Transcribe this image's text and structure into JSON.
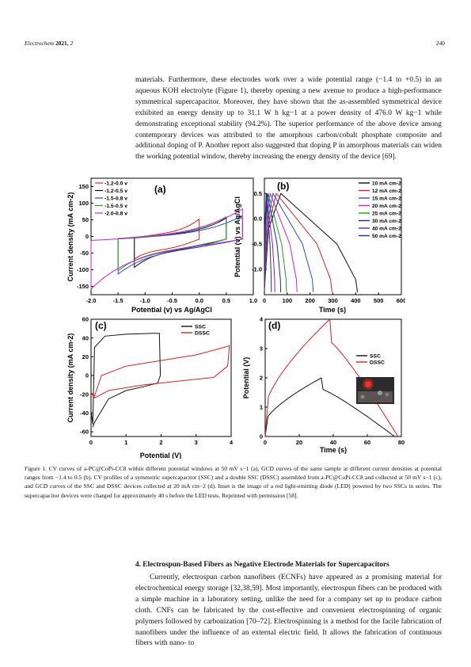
{
  "header": {
    "journal": "Electrochem",
    "year": "2021,",
    "volume": "2",
    "page": "240"
  },
  "para1": {
    "lines": [
      "materials. Furthermore, these electrodes work over a wide potential range (−1.4 to +0.5)",
      "in an aqueous KOH electrolyte (Figure 1), thereby opening a new avenue to produce",
      "a high-performance symmetrical supercapacitor. Moreover, they have shown that the",
      "as-assembled symmetrical device exhibited an energy density up to 31.1 W h kg−1 at a",
      "power density of 476.0 W kg−1 while demonstrating exceptional stability (94.2%). The",
      "superior performance of the above device among contemporary devices was attributed to",
      "the amorphous carbon/cobalt phosphate composite and additional doping of P. Another",
      "report also suggested that doping P in amorphous materials can widen the working",
      "potential window, thereby increasing the energy density of the device [69]."
    ]
  },
  "chart_data": [
    {
      "type": "line",
      "panel": "(a)",
      "xlabel": "Potential (v) vs Ag/AgCl",
      "ylabel": "Current density (mA cm-2)",
      "xlim": [
        -2.0,
        1.0
      ],
      "ylim": [
        -175,
        175
      ],
      "xticks": [
        "-2.0",
        "-1.5",
        "-1.0",
        "-0.5",
        "0.0",
        "0.5",
        "1.0"
      ],
      "yticks": [
        "150",
        "100",
        "50",
        "0",
        "-50",
        "-100",
        "-150"
      ],
      "legend": "top-left",
      "series": [
        {
          "name": "-1.2-0.0 v",
          "color": "#e02020",
          "x_range": [
            -1.2,
            0.0
          ]
        },
        {
          "name": "-1.2-0.5 v",
          "color": "#111111",
          "x_range": [
            -1.2,
            0.5
          ]
        },
        {
          "name": "-1.5-0.8 v",
          "color": "#2a4de0",
          "x_range": [
            -1.5,
            0.8
          ]
        },
        {
          "name": "-1.5-0.5 v",
          "color": "#20a020",
          "x_range": [
            -1.5,
            0.5
          ]
        },
        {
          "name": "-2.0-0.8 v",
          "color": "#d020d0",
          "x_range": [
            -2.0,
            0.8
          ]
        }
      ]
    },
    {
      "type": "line",
      "panel": "(b)",
      "xlabel": "Time (s)",
      "ylabel": "Potential (v) vs Ag/AgCl",
      "xlim": [
        0,
        600
      ],
      "ylim": [
        -1.5,
        0.8
      ],
      "xticks": [
        "0",
        "100",
        "200",
        "300",
        "400",
        "500",
        "600"
      ],
      "yticks": [
        "0.5",
        "0.0",
        "-0.5",
        "-1.0"
      ],
      "legend": "top-right",
      "series": [
        {
          "name": "10 mA cm-2",
          "color": "#111111",
          "discharge_end": 400
        },
        {
          "name": "12 mA cm-2",
          "color": "#e02020",
          "discharge_end": 290
        },
        {
          "name": "15 mA cm-2",
          "color": "#2a4de0",
          "discharge_end": 210
        },
        {
          "name": "20 mA cm-2",
          "color": "#d020d0",
          "discharge_end": 140
        },
        {
          "name": "25 mA cm-2",
          "color": "#20a020",
          "discharge_end": 95
        },
        {
          "name": "30 mA cm-2",
          "color": "#1a2a90",
          "discharge_end": 70
        },
        {
          "name": "40 mA cm-2",
          "color": "#8020c0",
          "discharge_end": 45
        },
        {
          "name": "50 mA cm-2",
          "color": "#203080",
          "discharge_end": 30
        }
      ]
    },
    {
      "type": "line",
      "panel": "(c)",
      "xlabel": "Potential (V)",
      "ylabel": "Current density (mA cm-2)",
      "xlim": [
        0,
        4
      ],
      "ylim": [
        -65,
        60
      ],
      "xticks": [
        "0",
        "1",
        "2",
        "3",
        "4"
      ],
      "yticks": [
        "60",
        "40",
        "20",
        "0",
        "-20",
        "-40",
        "-60"
      ],
      "legend": "top-right",
      "series": [
        {
          "name": "SSC",
          "color": "#111111",
          "x_range": [
            0,
            2.0
          ]
        },
        {
          "name": "DSSC",
          "color": "#e02020",
          "x_range": [
            0,
            4.0
          ]
        }
      ]
    },
    {
      "type": "line",
      "panel": "(d)",
      "xlabel": "Time (s)",
      "ylabel": "Potential (V)",
      "xlim": [
        0,
        80
      ],
      "ylim": [
        0,
        4
      ],
      "xticks": [
        "0",
        "20",
        "40",
        "60",
        "80"
      ],
      "yticks": [
        "0",
        "1",
        "2",
        "3",
        "4"
      ],
      "legend": "top-right",
      "series": [
        {
          "name": "SSC",
          "color": "#111111",
          "x": [
            0,
            33,
            76
          ],
          "y": [
            0,
            2.0,
            0
          ]
        },
        {
          "name": "DSSC",
          "color": "#e02020",
          "x": [
            0,
            38,
            78
          ],
          "y": [
            0,
            4.0,
            0
          ]
        }
      ],
      "inset": "LED photo"
    }
  ],
  "caption": {
    "lines": [
      "Figure 1. CV curves of a-PC@CoPi-CC8 within different potential windows at 50 mV s−1 (a), GCD curves of the same",
      "sample at different current densities at potential ranges from −1.4 to 0.5 (b). CV profiles of a symmetric supercapacitor",
      "(SSC) and a double SSC (DSSC) assembled from a-PC@CoPi-CC8 and collected at 50 mV s−1 (c), and GCD curves of the",
      "SSC and DSSC devices collected at 20 mA cm−2 (d). Inset is the image of a red light-emitting diode (LED) powered by",
      "two SSCs in series. The supercapacitor devices were charged for approximately 40 s before the LED tests. Reprinted with",
      "permission [58]."
    ]
  },
  "section_title": "4. Electrospun-Based Fibers as Negative Electrode Materials for Supercapacitors",
  "para2": {
    "lines": [
      "Currently, electrospun carbon nanofibers (ECNFs) have appeared as a promising",
      "material for electrochemical energy storage [32,38,59]. Most importantly, electrospun",
      "fibers can be produced with a simple machine in a laboratory setting, unlike the need for",
      "a company set up to produce carbon cloth. CNFs can be fabricated by the cost-effective",
      "and convenient electrospinning of organic polymers followed by carbonization [70–72].",
      "Electrospinning is a method for the facile fabrication of nanofibers under the influence",
      "of an external electric field. It allows the fabrication of continuous fibers with nano- to"
    ]
  }
}
